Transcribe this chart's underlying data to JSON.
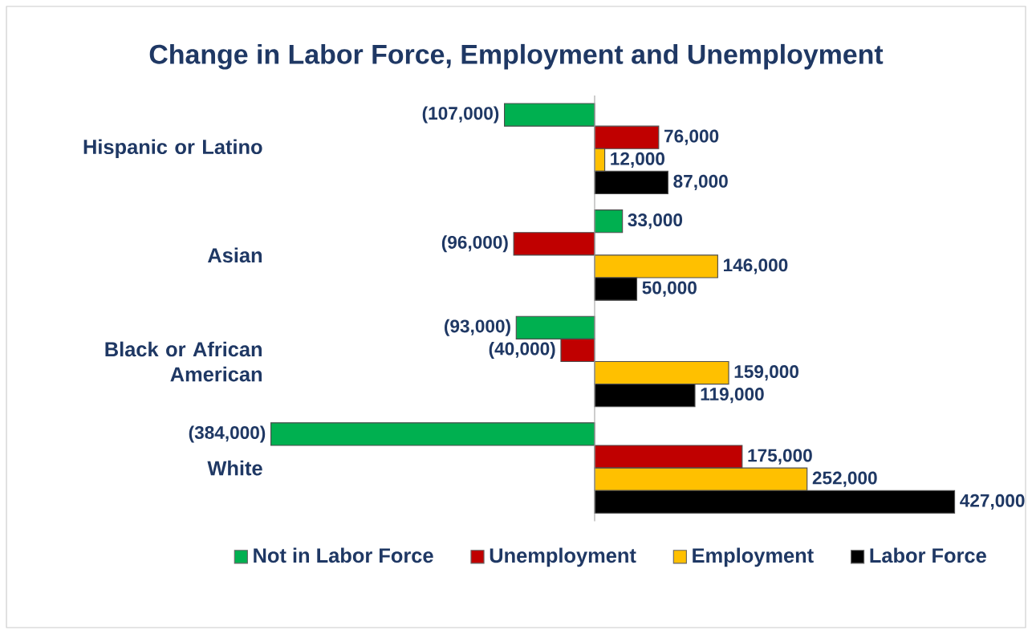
{
  "chart_data": {
    "type": "bar",
    "orientation": "horizontal",
    "title": "Change in Labor Force, Employment  and Unemployment",
    "categories": [
      "Hispanic or Latino",
      "Asian",
      "Black or African American",
      "White"
    ],
    "series": [
      {
        "name": "Not in Labor Force",
        "color": "#00b050",
        "values": [
          -107000,
          33000,
          -93000,
          -384000
        ],
        "value_labels": [
          "(107,000)",
          "33,000",
          "(93,000)",
          "(384,000)"
        ]
      },
      {
        "name": "Unemployment",
        "color": "#c00000",
        "values": [
          76000,
          -96000,
          -40000,
          175000
        ],
        "value_labels": [
          "76,000",
          "(96,000)",
          "(40,000)",
          "175,000"
        ]
      },
      {
        "name": "Employment",
        "color": "#ffc000",
        "values": [
          12000,
          146000,
          159000,
          252000
        ],
        "value_labels": [
          "12,000",
          "146,000",
          "159,000",
          "252,000"
        ]
      },
      {
        "name": "Labor Force",
        "color": "#000000",
        "values": [
          87000,
          50000,
          119000,
          427000
        ],
        "value_labels": [
          "87,000",
          "50,000",
          "119,000",
          "427,000"
        ]
      }
    ],
    "tick_labels": "y",
    "legend": "bottom"
  }
}
